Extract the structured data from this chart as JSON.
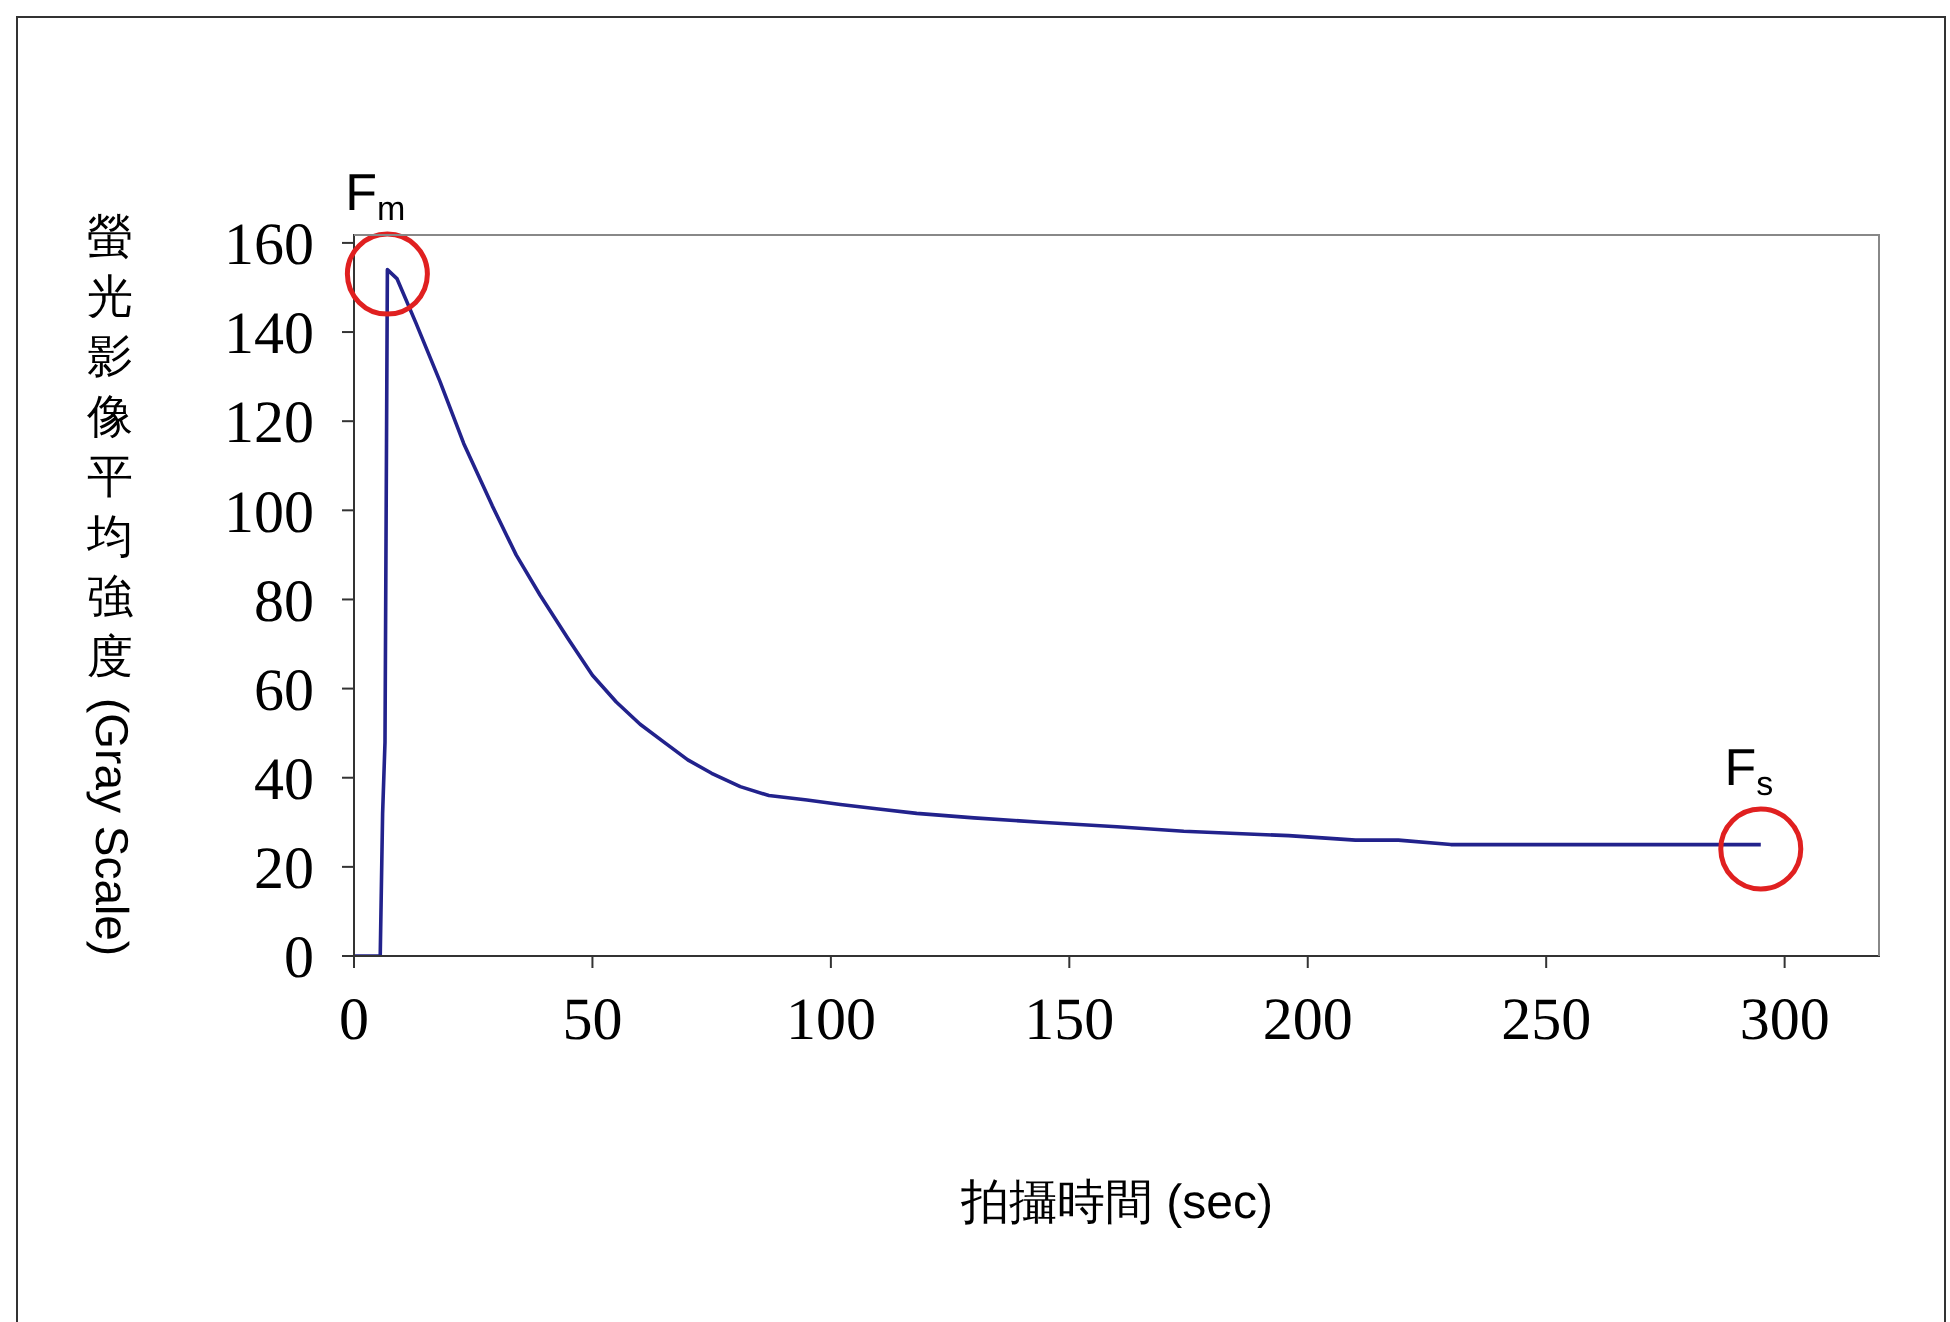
{
  "chart_data": {
    "type": "line",
    "xlabel": "拍攝時間 (sec)",
    "ylabel": "螢光影像平均強度 (Gray Scale)",
    "xlim": [
      0,
      320
    ],
    "ylim": [
      0,
      162
    ],
    "xticks": [
      0,
      50,
      100,
      150,
      200,
      250,
      300
    ],
    "yticks": [
      0,
      20,
      40,
      60,
      80,
      100,
      120,
      140,
      160
    ],
    "marker": "none",
    "line_style": "solid",
    "annotations": [
      {
        "text": "F$_{m}$",
        "x": 7,
        "y": 153
      },
      {
        "text": "F$_{s}$",
        "x": 295,
        "y": 24
      }
    ],
    "series": [
      {
        "color": "#22228c",
        "x": [
          0,
          5.5,
          6,
          6.5,
          7,
          9,
          13,
          18,
          23,
          29,
          34,
          39,
          45,
          50,
          55,
          60,
          65,
          70,
          75,
          81,
          87,
          95,
          102,
          110,
          118,
          130,
          144,
          160,
          174,
          185,
          196,
          210,
          219,
          230,
          250,
          270,
          295
        ],
        "values": [
          0,
          0,
          32,
          48,
          154,
          152,
          142,
          129,
          115,
          101,
          90,
          81,
          71,
          63,
          57,
          52,
          48,
          44,
          41,
          38,
          36,
          35,
          34,
          33,
          32,
          31,
          30,
          29,
          28,
          27.5,
          27,
          26,
          26,
          25,
          25,
          25,
          25
        ]
      }
    ]
  }
}
